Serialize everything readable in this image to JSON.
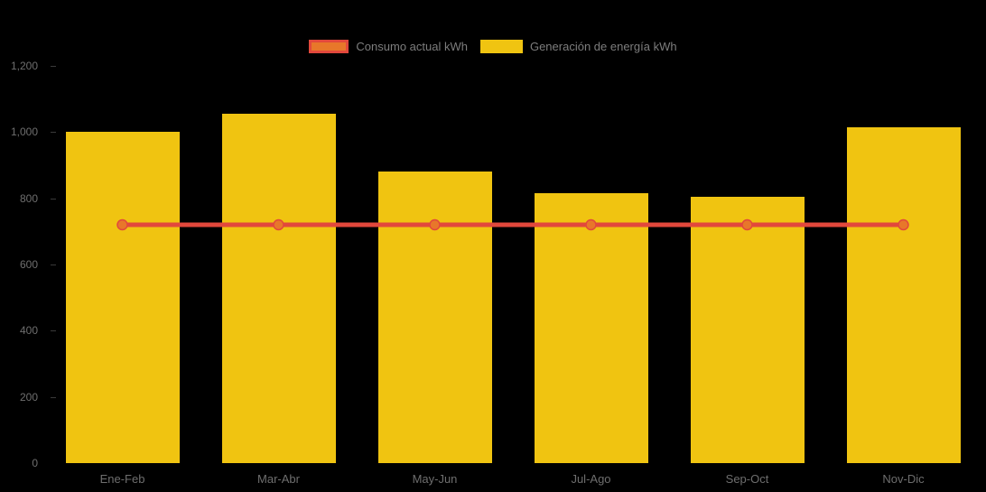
{
  "chart_data": {
    "type": "bar",
    "title": "",
    "xlabel": "",
    "ylabel": "",
    "categories": [
      "Ene-Feb",
      "Mar-Abr",
      "May-Jun",
      "Jul-Ago",
      "Sep-Oct",
      "Nov-Dic"
    ],
    "series": [
      {
        "name": "Consumo actual kWh",
        "type": "line",
        "color": "#E2483C",
        "marker_fill": "#E8772A",
        "values": [
          720,
          720,
          720,
          720,
          720,
          720
        ]
      },
      {
        "name": "Generación de energía kWh",
        "type": "bar",
        "color": "#F0C411",
        "values": [
          1000,
          1055,
          880,
          815,
          805,
          1015
        ]
      }
    ],
    "ylim": [
      0,
      1200
    ],
    "y_tick_values": [
      0,
      200,
      400,
      600,
      800,
      1000,
      1200
    ],
    "y_tick_labels": [
      "0",
      "200",
      "400",
      "600",
      "800",
      "1,000",
      "1,200"
    ],
    "grid": false,
    "legend_position": "top-center",
    "background": "#000000",
    "axis_text_color": "#6E6E6E",
    "legend_text_color": "#7D7D7D"
  }
}
